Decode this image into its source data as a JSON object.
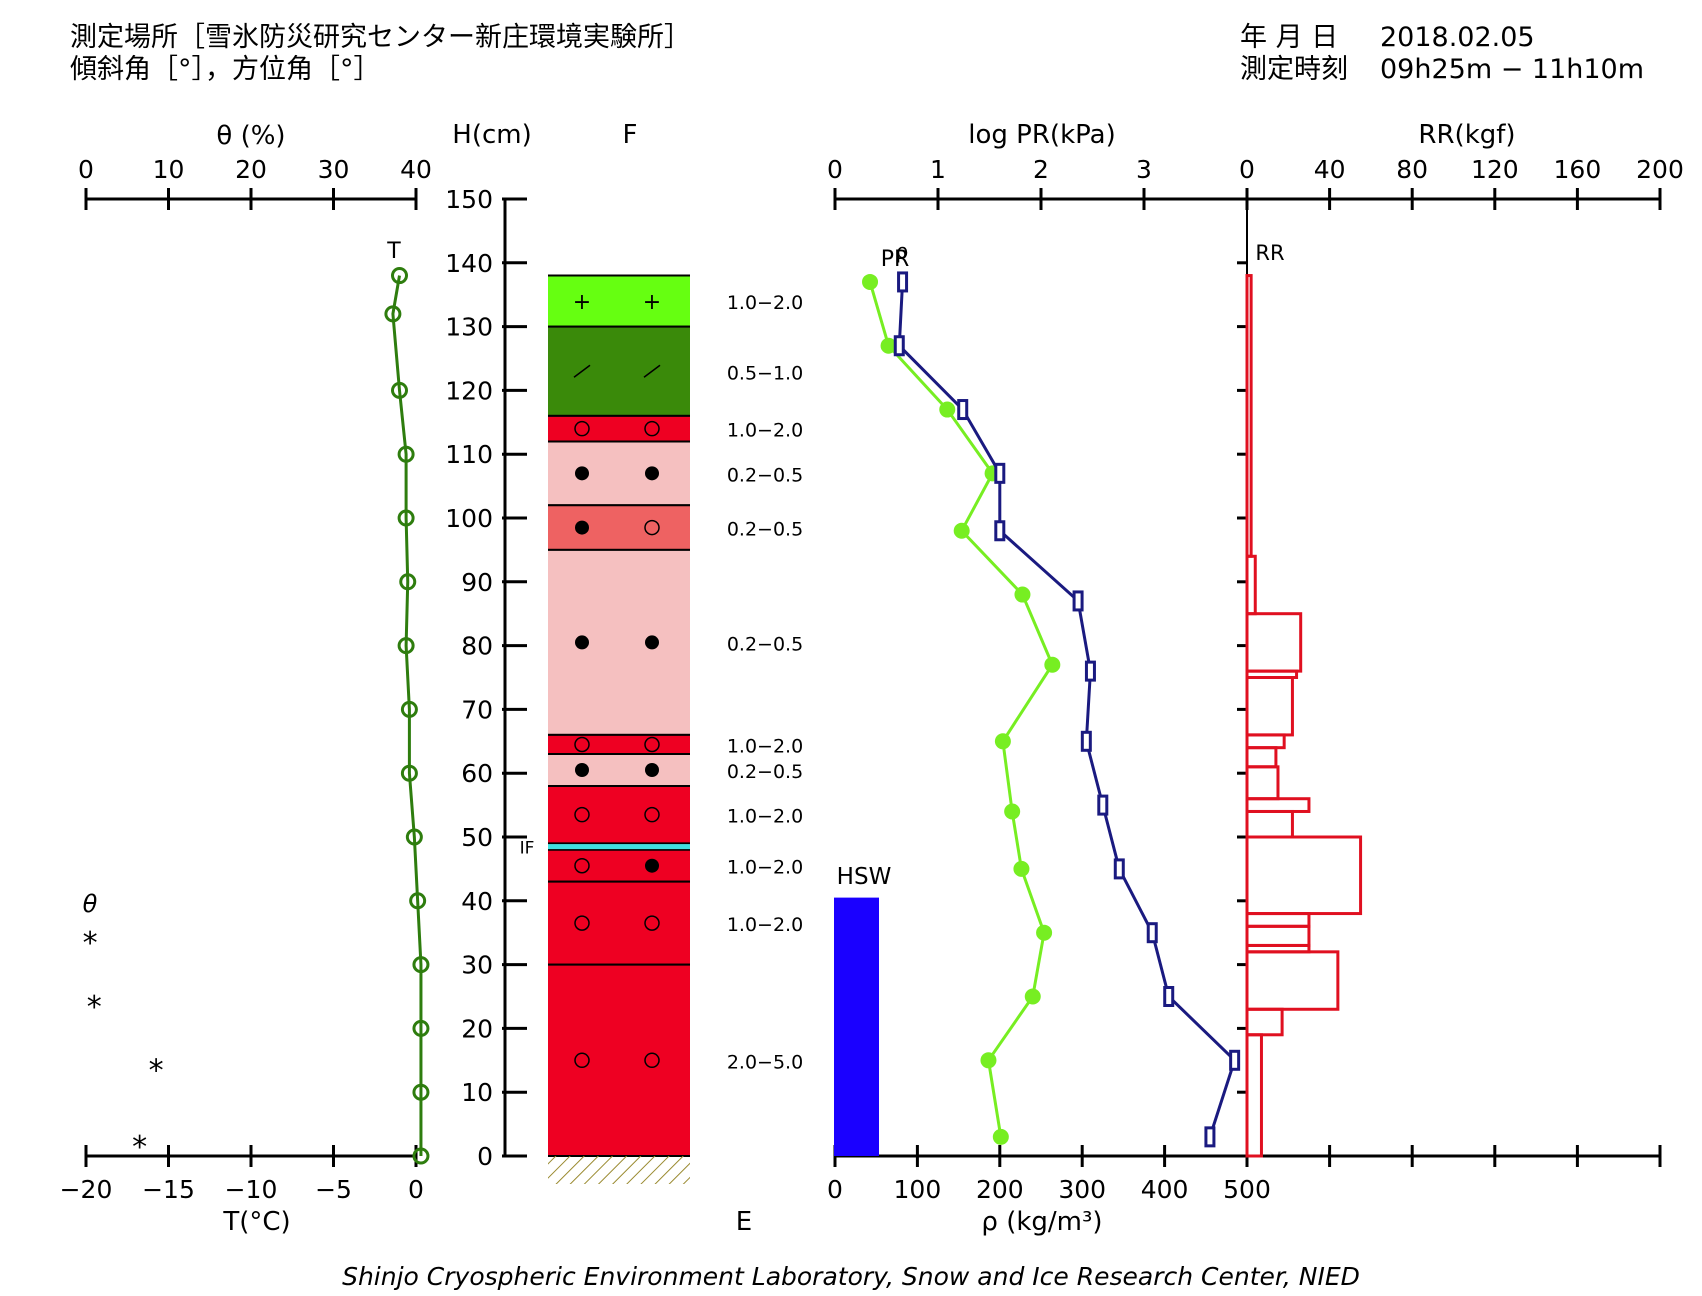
{
  "header": {
    "location": "測定場所［雪氷防災研究センター新庄環境実験所］",
    "angles": "傾斜角［°］，方位角［°］",
    "date_label": "年 月 日",
    "date_value": "2018.02.05",
    "time_label": "測定時刻",
    "time_value": "09h25m − 11h10m"
  },
  "footer": "Shinjo Cryospheric Environment Laboratory, Snow and Ice Research Center, NIED",
  "labels": {
    "theta_axis": "θ (%)",
    "h_axis": "H(cm)",
    "f_label": "F",
    "e_label": "E",
    "t_axis": "T(°C)",
    "logpr_axis": "log PR(kPa)",
    "rr_axis": "RR(kgf)",
    "rho_axis": "ρ (kg/m³)",
    "t_series": "T",
    "pr_series": "PR",
    "rho_series": "ρ",
    "rr_series": "RR",
    "hsw_series": "HSW",
    "theta_series": "θ",
    "if_mark": "IF"
  },
  "colors": {
    "temperature": "#2e7d0e",
    "pr": "#77ee22",
    "density": "#1a1a80",
    "rr": "#e01020",
    "hsw": "#1a00ff",
    "if_line": "#40e0e0",
    "ground_hatch": "#9a8a30"
  },
  "chart_data": {
    "type": "snow-pit-profile",
    "height_axis": {
      "label": "H(cm)",
      "range": [
        0,
        150
      ],
      "ticks": [
        0,
        10,
        20,
        30,
        40,
        50,
        60,
        70,
        80,
        90,
        100,
        110,
        120,
        130,
        140,
        150
      ]
    },
    "temperature": {
      "axis_label": "T(°C)",
      "range": [
        -20,
        0
      ],
      "ticks": [
        -20,
        -15,
        -10,
        -5,
        0
      ],
      "points": [
        [
          138,
          -1.0
        ],
        [
          132,
          -1.4
        ],
        [
          120,
          -1.0
        ],
        [
          110,
          -0.6
        ],
        [
          100,
          -0.6
        ],
        [
          90,
          -0.5
        ],
        [
          80,
          -0.6
        ],
        [
          70,
          -0.4
        ],
        [
          60,
          -0.4
        ],
        [
          50,
          -0.1
        ],
        [
          40,
          0.1
        ],
        [
          30,
          0.3
        ],
        [
          20,
          0.3
        ],
        [
          10,
          0.3
        ],
        [
          0,
          0.3
        ]
      ]
    },
    "theta": {
      "axis_label": "θ (%)",
      "range": [
        0,
        40
      ],
      "ticks": [
        0,
        10,
        20,
        30,
        40
      ],
      "points": [
        [
          2,
          6.5
        ],
        [
          14,
          8.5
        ],
        [
          24,
          1.0
        ],
        [
          34,
          0.5
        ]
      ]
    },
    "layers": [
      {
        "bottom": 130,
        "top": 138,
        "color": "#66ff11",
        "symbols": [
          "+",
          "+"
        ],
        "size": "1.0−2.0"
      },
      {
        "bottom": 116,
        "top": 130,
        "color": "#3a8a0a",
        "symbols": [
          "/",
          "/"
        ],
        "size": "0.5−1.0"
      },
      {
        "bottom": 112,
        "top": 116,
        "color": "#ee0022",
        "symbols": [
          "o",
          "o"
        ],
        "size": "1.0−2.0"
      },
      {
        "bottom": 102,
        "top": 112,
        "color": "#f5c0c0",
        "symbols": [
          "●",
          "●"
        ],
        "size": "0.2−0.5"
      },
      {
        "bottom": 95,
        "top": 102,
        "color": "#ee6262",
        "symbols": [
          "●",
          "o"
        ],
        "size": "0.2−0.5"
      },
      {
        "bottom": 66,
        "top": 95,
        "color": "#f5c0c0",
        "symbols": [
          "●",
          "●"
        ],
        "size": "0.2−0.5"
      },
      {
        "bottom": 63,
        "top": 66,
        "color": "#ee0022",
        "symbols": [
          "o",
          "o"
        ],
        "size": "1.0−2.0"
      },
      {
        "bottom": 58,
        "top": 63,
        "color": "#f5c0c0",
        "symbols": [
          "●",
          "●"
        ],
        "size": "0.2−0.5"
      },
      {
        "bottom": 49,
        "top": 58,
        "color": "#ee0022",
        "symbols": [
          "o",
          "o"
        ],
        "size": "1.0−2.0"
      },
      {
        "bottom": 43,
        "top": 48,
        "color": "#ee0022",
        "symbols": [
          "o",
          "●"
        ],
        "size": "1.0−2.0"
      },
      {
        "bottom": 30,
        "top": 43,
        "color": "#ee0022",
        "symbols": [
          "o",
          "o"
        ],
        "size": "1.0−2.0"
      },
      {
        "bottom": 0,
        "top": 30,
        "color": "#ee0022",
        "symbols": [
          "o",
          "o"
        ],
        "size": "2.0−5.0"
      }
    ],
    "ice_film": {
      "height": 48.5,
      "label": "IF"
    },
    "log_pr": {
      "axis_label": "log PR(kPa)",
      "range": [
        0,
        4
      ],
      "ticks": [
        0,
        1,
        2,
        3
      ],
      "points": [
        [
          137,
          0.34
        ],
        [
          127,
          0.52
        ],
        [
          117,
          1.09
        ],
        [
          107,
          1.53
        ],
        [
          98,
          1.23
        ],
        [
          88,
          1.82
        ],
        [
          77,
          2.11
        ],
        [
          65,
          1.63
        ],
        [
          54,
          1.72
        ],
        [
          45,
          1.81
        ],
        [
          35,
          2.03
        ],
        [
          25,
          1.92
        ],
        [
          15,
          1.49
        ],
        [
          3,
          1.61
        ]
      ]
    },
    "density": {
      "axis_label": "ρ (kg/m³)",
      "range": [
        0,
        500
      ],
      "ticks": [
        0,
        100,
        200,
        300,
        400,
        500
      ],
      "points": [
        [
          137,
          82
        ],
        [
          127,
          78
        ],
        [
          117,
          155
        ],
        [
          107,
          200
        ],
        [
          98,
          200
        ],
        [
          87,
          295
        ],
        [
          76,
          310
        ],
        [
          65,
          305
        ],
        [
          55,
          325
        ],
        [
          45,
          345
        ],
        [
          35,
          385
        ],
        [
          25,
          405
        ],
        [
          15,
          485
        ],
        [
          3,
          455
        ]
      ]
    },
    "rr": {
      "axis_label": "RR(kgf)",
      "range": [
        0,
        200
      ],
      "ticks": [
        0,
        40,
        80,
        120,
        160,
        200
      ],
      "steps": [
        [
          138,
          94,
          2
        ],
        [
          94,
          85,
          4
        ],
        [
          85,
          76,
          26
        ],
        [
          76,
          75,
          24
        ],
        [
          75,
          66,
          22
        ],
        [
          66,
          64,
          18
        ],
        [
          64,
          61,
          14
        ],
        [
          61,
          56,
          15
        ],
        [
          56,
          54,
          30
        ],
        [
          54,
          50,
          22
        ],
        [
          50,
          38,
          55
        ],
        [
          38,
          36,
          30
        ],
        [
          36,
          33,
          30
        ],
        [
          33,
          32,
          30
        ],
        [
          32,
          23,
          44
        ],
        [
          23,
          19,
          17
        ],
        [
          19,
          0,
          7
        ]
      ]
    },
    "hsw": {
      "label": "HSW",
      "value": 40.5,
      "unit": "cm"
    }
  }
}
